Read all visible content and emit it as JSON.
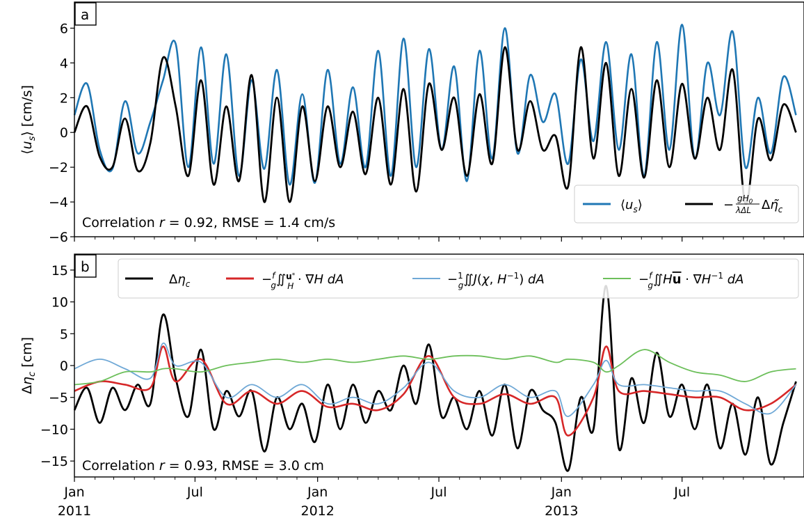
{
  "colors": {
    "blue": "#1f77b4",
    "black": "#000000",
    "red": "#d62728",
    "light_blue": "#6fa8d6",
    "green": "#6cbf5a"
  },
  "x_tick_labels": [
    {
      "month": "Jan",
      "year": "2011"
    },
    {
      "month": "Jul",
      "year": ""
    },
    {
      "month": "Jan",
      "year": "2012"
    },
    {
      "month": "Jul",
      "year": ""
    },
    {
      "month": "Jan",
      "year": "2013"
    },
    {
      "month": "Jul",
      "year": ""
    }
  ],
  "chart_data": [
    {
      "type": "line",
      "panel_label": "a",
      "ylabel": "⟨u_s⟩ [cm/s]",
      "xlim": [
        "2011-01-01",
        "2013-12-31"
      ],
      "ylim": [
        -6,
        7.5
      ],
      "yticks": [
        -6,
        -4,
        -2,
        0,
        2,
        4,
        6
      ],
      "grid": false,
      "legend_placement": "lower-right",
      "annotation": "Correlation r = 0.92, RMSE = 1.4 cm/s",
      "series": [
        {
          "name": "⟨u_s⟩",
          "color": "blue",
          "x": [
            "2011-01-01",
            "2011-01-20",
            "2011-02-08",
            "2011-02-27",
            "2011-03-18",
            "2011-04-06",
            "2011-04-25",
            "2011-05-14",
            "2011-06-02",
            "2011-06-21",
            "2011-07-10",
            "2011-07-29",
            "2011-08-17",
            "2011-09-05",
            "2011-09-24",
            "2011-10-13",
            "2011-11-01",
            "2011-11-20",
            "2011-12-09",
            "2011-12-28",
            "2012-01-16",
            "2012-02-04",
            "2012-02-23",
            "2012-03-13",
            "2012-04-01",
            "2012-04-20",
            "2012-05-09",
            "2012-05-28",
            "2012-06-16",
            "2012-07-05",
            "2012-07-24",
            "2012-08-12",
            "2012-08-31",
            "2012-09-19",
            "2012-10-08",
            "2012-10-27",
            "2012-11-15",
            "2012-12-04",
            "2012-12-23",
            "2013-01-11",
            "2013-01-30",
            "2013-02-18",
            "2013-03-09",
            "2013-03-28",
            "2013-04-16",
            "2013-05-05",
            "2013-05-24",
            "2013-06-12",
            "2013-07-01",
            "2013-07-20",
            "2013-08-08",
            "2013-08-27",
            "2013-09-15",
            "2013-10-04",
            "2013-10-23",
            "2013-11-11",
            "2013-11-30",
            "2013-12-19"
          ],
          "values": [
            1.0,
            2.8,
            -1.0,
            -2.1,
            1.8,
            -1.2,
            0.6,
            3.0,
            5.1,
            -2.0,
            4.9,
            -1.8,
            4.5,
            -2.5,
            3.0,
            -2.1,
            3.6,
            -3.0,
            2.2,
            -2.9,
            3.6,
            -1.8,
            2.6,
            -2.0,
            4.7,
            -2.5,
            5.4,
            -2.0,
            4.8,
            -1.0,
            3.8,
            -2.8,
            4.7,
            -1.5,
            6.0,
            -1.2,
            3.3,
            0.6,
            2.2,
            -1.8,
            4.2,
            -0.5,
            5.2,
            -1.0,
            4.5,
            -2.5,
            5.2,
            -1.0,
            6.2,
            -1.5,
            4.0,
            1.0,
            5.8,
            -2.0,
            2.0,
            -1.2,
            3.2,
            1.0
          ]
        },
        {
          "name": "−(gH₀/λΔL) Δη̃_c",
          "color": "black",
          "x": [
            "2011-01-01",
            "2011-01-20",
            "2011-02-08",
            "2011-02-27",
            "2011-03-18",
            "2011-04-06",
            "2011-04-25",
            "2011-05-14",
            "2011-06-02",
            "2011-06-21",
            "2011-07-10",
            "2011-07-29",
            "2011-08-17",
            "2011-09-05",
            "2011-09-24",
            "2011-10-13",
            "2011-11-01",
            "2011-11-20",
            "2011-12-09",
            "2011-12-28",
            "2012-01-16",
            "2012-02-04",
            "2012-02-23",
            "2012-03-13",
            "2012-04-01",
            "2012-04-20",
            "2012-05-09",
            "2012-05-28",
            "2012-06-16",
            "2012-07-05",
            "2012-07-24",
            "2012-08-12",
            "2012-08-31",
            "2012-09-19",
            "2012-10-08",
            "2012-10-27",
            "2012-11-15",
            "2012-12-04",
            "2012-12-23",
            "2013-01-11",
            "2013-01-30",
            "2013-02-18",
            "2013-03-09",
            "2013-03-28",
            "2013-04-16",
            "2013-05-05",
            "2013-05-24",
            "2013-06-12",
            "2013-07-01",
            "2013-07-20",
            "2013-08-08",
            "2013-08-27",
            "2013-09-15",
            "2013-10-04",
            "2013-10-23",
            "2013-11-11",
            "2013-11-30",
            "2013-12-19"
          ],
          "values": [
            0.0,
            1.5,
            -1.4,
            -2.0,
            0.8,
            -2.2,
            -0.6,
            4.3,
            1.5,
            -2.5,
            3.0,
            -3.0,
            1.5,
            -2.8,
            3.3,
            -4.0,
            2.0,
            -4.0,
            1.5,
            -2.8,
            1.5,
            -2.0,
            1.2,
            -2.4,
            2.0,
            -3.0,
            2.5,
            -3.4,
            2.8,
            -1.0,
            2.0,
            -2.5,
            2.2,
            -1.8,
            4.9,
            -1.0,
            1.8,
            -1.0,
            -0.2,
            -3.1,
            4.9,
            -1.5,
            4.0,
            -2.5,
            2.5,
            -2.6,
            3.0,
            -2.0,
            2.8,
            -1.5,
            2.0,
            -1.0,
            3.6,
            -4.1,
            0.8,
            -1.6,
            1.6,
            0.0
          ]
        }
      ]
    },
    {
      "type": "line",
      "panel_label": "b",
      "ylabel": "Δη_c [cm]",
      "xlim": [
        "2011-01-01",
        "2013-12-31"
      ],
      "ylim": [
        -17.5,
        17.5
      ],
      "yticks": [
        -15,
        -10,
        -5,
        0,
        5,
        10,
        15
      ],
      "grid": false,
      "legend_placement": "top",
      "annotation": "Correlation r = 0.93, RMSE = 3.0 cm",
      "series": [
        {
          "name": "Δη_c",
          "color": "black",
          "x": [
            "2011-01-01",
            "2011-01-20",
            "2011-02-08",
            "2011-02-27",
            "2011-03-18",
            "2011-04-06",
            "2011-04-25",
            "2011-05-14",
            "2011-06-02",
            "2011-06-21",
            "2011-07-10",
            "2011-07-29",
            "2011-08-17",
            "2011-09-05",
            "2011-09-24",
            "2011-10-13",
            "2011-11-01",
            "2011-11-20",
            "2011-12-09",
            "2011-12-28",
            "2012-01-16",
            "2012-02-04",
            "2012-02-23",
            "2012-03-13",
            "2012-04-01",
            "2012-04-20",
            "2012-05-09",
            "2012-05-28",
            "2012-06-16",
            "2012-07-05",
            "2012-07-24",
            "2012-08-12",
            "2012-08-31",
            "2012-09-19",
            "2012-10-08",
            "2012-10-27",
            "2012-11-15",
            "2012-12-04",
            "2012-12-23",
            "2013-01-11",
            "2013-01-30",
            "2013-02-18",
            "2013-03-09",
            "2013-03-28",
            "2013-04-16",
            "2013-05-05",
            "2013-05-24",
            "2013-06-12",
            "2013-07-01",
            "2013-07-20",
            "2013-08-08",
            "2013-08-27",
            "2013-09-15",
            "2013-10-04",
            "2013-10-23",
            "2013-11-11",
            "2013-11-30",
            "2013-12-19"
          ],
          "values": [
            -7.0,
            -3.5,
            -9.0,
            -3.5,
            -7.0,
            -3.0,
            -6.0,
            8.0,
            -2.0,
            -8.0,
            2.5,
            -10.0,
            -4.0,
            -8.0,
            -4.0,
            -13.5,
            -5.0,
            -10.0,
            -6.0,
            -12.0,
            -3.0,
            -10.0,
            -3.0,
            -9.0,
            -4.0,
            -7.0,
            0.0,
            -6.0,
            3.3,
            -8.0,
            -5.0,
            -10.0,
            -4.0,
            -11.0,
            -3.0,
            -13.0,
            -4.0,
            -7.0,
            -9.0,
            -16.5,
            -5.0,
            -10.0,
            12.5,
            -13.0,
            -2.0,
            -9.0,
            2.0,
            -8.0,
            -3.0,
            -10.0,
            -3.0,
            -13.0,
            -6.0,
            -14.0,
            -5.0,
            -15.5,
            -9.0,
            -2.5
          ]
        },
        {
          "name": "−(f/g)∬(u*/H)·∇H dA",
          "color": "red",
          "x": [
            "2011-01-01",
            "2011-02-08",
            "2011-03-18",
            "2011-04-25",
            "2011-05-14",
            "2011-06-02",
            "2011-07-10",
            "2011-08-17",
            "2011-09-24",
            "2011-11-01",
            "2011-12-09",
            "2012-01-16",
            "2012-02-23",
            "2012-04-01",
            "2012-05-09",
            "2012-06-16",
            "2012-07-24",
            "2012-08-31",
            "2012-10-08",
            "2012-11-15",
            "2012-12-23",
            "2013-01-11",
            "2013-02-18",
            "2013-03-09",
            "2013-03-28",
            "2013-05-05",
            "2013-06-12",
            "2013-07-20",
            "2013-08-27",
            "2013-10-04",
            "2013-11-11",
            "2013-12-19"
          ],
          "values": [
            -4.0,
            -2.5,
            -3.0,
            -3.5,
            3.0,
            -2.5,
            1.0,
            -6.0,
            -4.0,
            -6.0,
            -4.0,
            -6.5,
            -6.0,
            -7.0,
            -4.5,
            1.5,
            -5.0,
            -6.0,
            -4.5,
            -6.0,
            -5.0,
            -11.0,
            -5.0,
            3.0,
            -4.0,
            -4.0,
            -4.5,
            -5.0,
            -5.0,
            -7.0,
            -6.0,
            -3.0
          ]
        },
        {
          "name": "−(1/g)∬J(χ, H⁻¹) dA",
          "color": "light_blue",
          "x": [
            "2011-01-01",
            "2011-02-08",
            "2011-03-18",
            "2011-04-25",
            "2011-05-14",
            "2011-06-02",
            "2011-07-10",
            "2011-08-17",
            "2011-09-24",
            "2011-11-01",
            "2011-12-09",
            "2012-01-16",
            "2012-02-23",
            "2012-04-01",
            "2012-05-09",
            "2012-06-16",
            "2012-07-24",
            "2012-08-31",
            "2012-10-08",
            "2012-11-15",
            "2012-12-23",
            "2013-01-11",
            "2013-02-18",
            "2013-03-09",
            "2013-03-28",
            "2013-05-05",
            "2013-06-12",
            "2013-07-20",
            "2013-08-27",
            "2013-10-04",
            "2013-11-11",
            "2013-12-19"
          ],
          "values": [
            -0.5,
            1.0,
            -0.5,
            -2.0,
            3.5,
            0.0,
            0.5,
            -5.0,
            -3.0,
            -5.0,
            -3.0,
            -6.0,
            -5.0,
            -6.0,
            -3.5,
            0.5,
            -4.0,
            -5.0,
            -3.0,
            -5.0,
            -4.0,
            -8.0,
            -3.0,
            0.8,
            -3.0,
            -3.0,
            -3.5,
            -4.0,
            -4.0,
            -6.0,
            -7.5,
            -3.0
          ]
        },
        {
          "name": "−(f/g)∬H ū·∇H⁻¹ dA",
          "color": "green",
          "x": [
            "2011-01-01",
            "2011-02-08",
            "2011-03-18",
            "2011-04-25",
            "2011-05-14",
            "2011-06-02",
            "2011-07-10",
            "2011-08-17",
            "2011-09-24",
            "2011-11-01",
            "2011-12-09",
            "2012-01-16",
            "2012-02-23",
            "2012-04-01",
            "2012-05-09",
            "2012-06-16",
            "2012-07-24",
            "2012-08-31",
            "2012-10-08",
            "2012-11-15",
            "2012-12-23",
            "2013-01-11",
            "2013-02-18",
            "2013-03-09",
            "2013-03-28",
            "2013-05-05",
            "2013-06-12",
            "2013-07-20",
            "2013-08-27",
            "2013-10-04",
            "2013-11-11",
            "2013-12-19"
          ],
          "values": [
            -3.0,
            -2.5,
            -1.0,
            -1.0,
            -0.5,
            -0.5,
            -1.0,
            0.0,
            0.5,
            1.0,
            0.5,
            1.0,
            0.5,
            1.0,
            1.5,
            1.0,
            1.5,
            1.5,
            1.0,
            1.5,
            0.5,
            1.0,
            0.5,
            -1.0,
            0.0,
            2.5,
            0.5,
            -1.0,
            -1.5,
            -2.5,
            -1.0,
            -0.5
          ]
        }
      ]
    }
  ]
}
